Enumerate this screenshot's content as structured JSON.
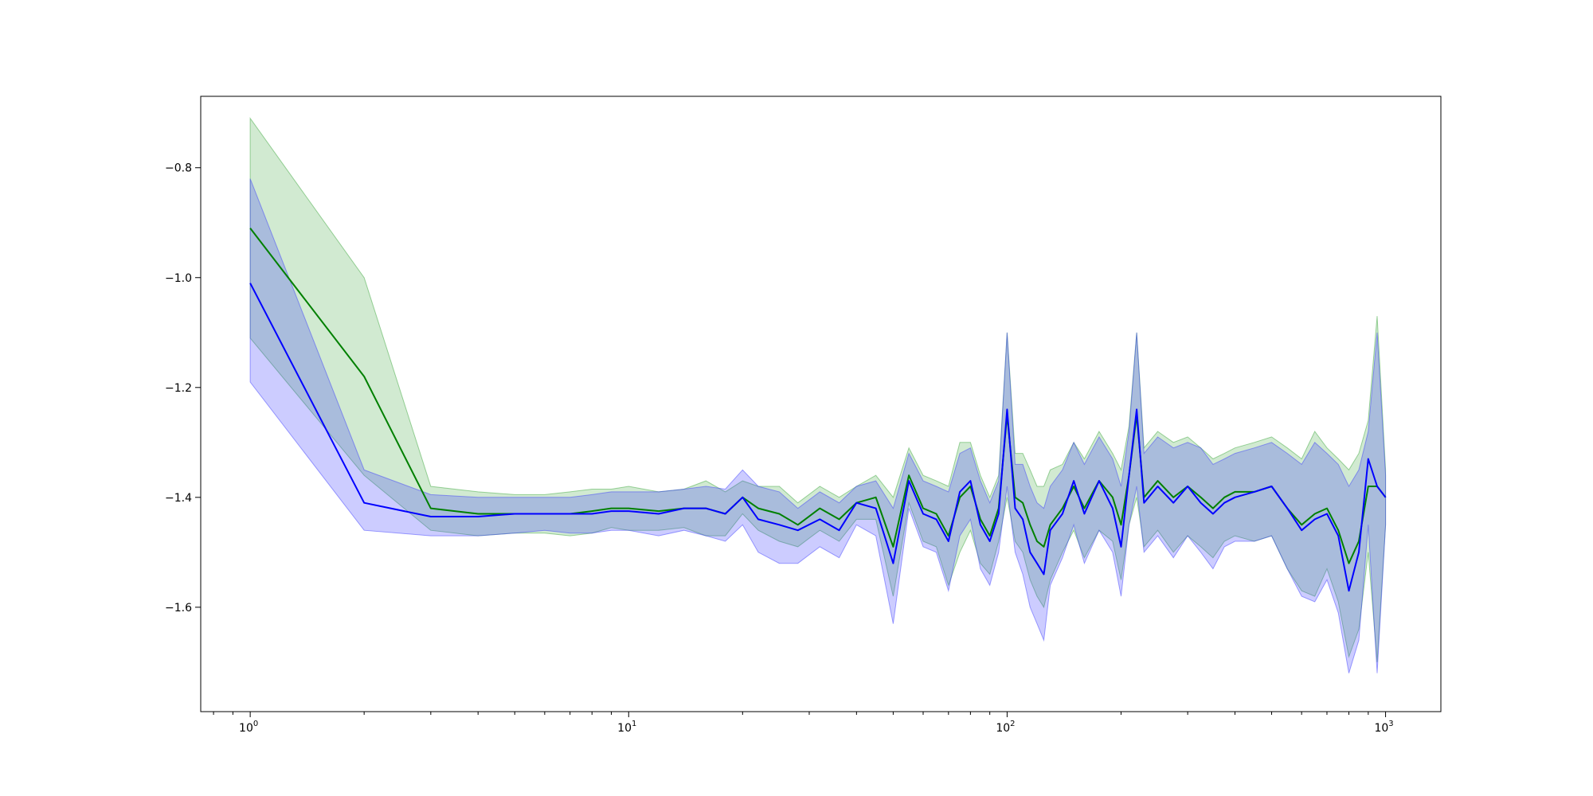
{
  "chart_data": {
    "type": "line",
    "title": "",
    "xlabel": "",
    "ylabel": "",
    "x_scale": "log",
    "xlim": [
      0.74,
      1400
    ],
    "ylim": [
      -1.79,
      -0.67
    ],
    "grid": false,
    "legend": "none",
    "x_ticks": [
      {
        "value": 1,
        "base": "10",
        "exp": "0"
      },
      {
        "value": 10,
        "base": "10",
        "exp": "1"
      },
      {
        "value": 100,
        "base": "10",
        "exp": "2"
      },
      {
        "value": 1000,
        "base": "10",
        "exp": "3"
      }
    ],
    "y_ticks": [
      {
        "value": -0.8,
        "label": "−0.8"
      },
      {
        "value": -1.0,
        "label": "−1.0"
      },
      {
        "value": -1.2,
        "label": "−1.2"
      },
      {
        "value": -1.4,
        "label": "−1.4"
      },
      {
        "value": -1.6,
        "label": "−1.6"
      }
    ],
    "series": [
      {
        "color": "#008000",
        "band_color": "#2ca02c",
        "band_opacity": 0.22,
        "x": [
          1,
          2,
          3,
          4,
          5,
          6,
          7,
          8,
          9,
          10,
          12,
          14,
          16,
          18,
          20,
          22,
          25,
          28,
          32,
          36,
          40,
          45,
          50,
          55,
          60,
          65,
          70,
          75,
          80,
          85,
          90,
          95,
          100,
          105,
          110,
          115,
          120,
          125,
          130,
          140,
          150,
          160,
          175,
          190,
          200,
          210,
          220,
          230,
          250,
          275,
          300,
          325,
          350,
          375,
          400,
          450,
          500,
          550,
          600,
          650,
          700,
          750,
          800,
          850,
          900,
          950,
          1000
        ],
        "mean": [
          -0.91,
          -1.18,
          -1.42,
          -1.43,
          -1.43,
          -1.43,
          -1.43,
          -1.425,
          -1.42,
          -1.42,
          -1.425,
          -1.42,
          -1.42,
          -1.43,
          -1.4,
          -1.42,
          -1.43,
          -1.45,
          -1.42,
          -1.44,
          -1.41,
          -1.4,
          -1.49,
          -1.36,
          -1.42,
          -1.43,
          -1.47,
          -1.4,
          -1.38,
          -1.44,
          -1.47,
          -1.42,
          -1.25,
          -1.4,
          -1.41,
          -1.45,
          -1.48,
          -1.49,
          -1.45,
          -1.42,
          -1.38,
          -1.42,
          -1.37,
          -1.4,
          -1.45,
          -1.36,
          -1.25,
          -1.4,
          -1.37,
          -1.4,
          -1.38,
          -1.4,
          -1.42,
          -1.4,
          -1.39,
          -1.39,
          -1.38,
          -1.42,
          -1.45,
          -1.43,
          -1.42,
          -1.46,
          -1.52,
          -1.48,
          -1.38,
          -1.38,
          -1.4
        ],
        "upper": [
          -0.71,
          -1.0,
          -1.38,
          -1.39,
          -1.395,
          -1.395,
          -1.39,
          -1.385,
          -1.385,
          -1.38,
          -1.39,
          -1.385,
          -1.37,
          -1.39,
          -1.37,
          -1.38,
          -1.38,
          -1.41,
          -1.38,
          -1.4,
          -1.38,
          -1.36,
          -1.4,
          -1.31,
          -1.36,
          -1.37,
          -1.38,
          -1.3,
          -1.3,
          -1.36,
          -1.4,
          -1.36,
          -1.1,
          -1.32,
          -1.32,
          -1.35,
          -1.38,
          -1.38,
          -1.35,
          -1.34,
          -1.3,
          -1.33,
          -1.28,
          -1.32,
          -1.35,
          -1.27,
          -1.1,
          -1.31,
          -1.28,
          -1.3,
          -1.29,
          -1.31,
          -1.33,
          -1.32,
          -1.31,
          -1.3,
          -1.29,
          -1.31,
          -1.33,
          -1.28,
          -1.31,
          -1.33,
          -1.35,
          -1.32,
          -1.26,
          -1.07,
          -1.35
        ],
        "lower": [
          -1.11,
          -1.36,
          -1.46,
          -1.47,
          -1.465,
          -1.465,
          -1.47,
          -1.465,
          -1.455,
          -1.46,
          -1.46,
          -1.455,
          -1.47,
          -1.47,
          -1.43,
          -1.46,
          -1.48,
          -1.49,
          -1.46,
          -1.48,
          -1.44,
          -1.44,
          -1.58,
          -1.41,
          -1.48,
          -1.49,
          -1.56,
          -1.5,
          -1.46,
          -1.52,
          -1.54,
          -1.48,
          -1.4,
          -1.48,
          -1.5,
          -1.55,
          -1.58,
          -1.6,
          -1.55,
          -1.5,
          -1.46,
          -1.51,
          -1.46,
          -1.48,
          -1.55,
          -1.45,
          -1.4,
          -1.49,
          -1.46,
          -1.5,
          -1.47,
          -1.49,
          -1.51,
          -1.48,
          -1.47,
          -1.48,
          -1.47,
          -1.53,
          -1.57,
          -1.58,
          -1.53,
          -1.59,
          -1.69,
          -1.64,
          -1.5,
          -1.7,
          -1.45
        ]
      },
      {
        "color": "#0000ff",
        "band_color": "#3333ff",
        "band_opacity": 0.25,
        "x": [
          1,
          2,
          3,
          4,
          5,
          6,
          7,
          8,
          9,
          10,
          12,
          14,
          16,
          18,
          20,
          22,
          25,
          28,
          32,
          36,
          40,
          45,
          50,
          55,
          60,
          65,
          70,
          75,
          80,
          85,
          90,
          95,
          100,
          105,
          110,
          115,
          120,
          125,
          130,
          140,
          150,
          160,
          175,
          190,
          200,
          210,
          220,
          230,
          250,
          275,
          300,
          325,
          350,
          375,
          400,
          450,
          500,
          550,
          600,
          650,
          700,
          750,
          800,
          850,
          900,
          950,
          1000
        ],
        "mean": [
          -1.01,
          -1.41,
          -1.435,
          -1.435,
          -1.43,
          -1.43,
          -1.43,
          -1.43,
          -1.425,
          -1.425,
          -1.43,
          -1.42,
          -1.42,
          -1.43,
          -1.4,
          -1.44,
          -1.45,
          -1.46,
          -1.44,
          -1.46,
          -1.41,
          -1.42,
          -1.52,
          -1.37,
          -1.43,
          -1.44,
          -1.48,
          -1.39,
          -1.37,
          -1.45,
          -1.48,
          -1.43,
          -1.24,
          -1.42,
          -1.44,
          -1.5,
          -1.52,
          -1.54,
          -1.46,
          -1.43,
          -1.37,
          -1.43,
          -1.37,
          -1.42,
          -1.49,
          -1.36,
          -1.24,
          -1.41,
          -1.38,
          -1.41,
          -1.38,
          -1.41,
          -1.43,
          -1.41,
          -1.4,
          -1.39,
          -1.38,
          -1.42,
          -1.46,
          -1.44,
          -1.43,
          -1.47,
          -1.57,
          -1.5,
          -1.33,
          -1.38,
          -1.4
        ],
        "upper": [
          -0.82,
          -1.35,
          -1.395,
          -1.4,
          -1.4,
          -1.4,
          -1.4,
          -1.395,
          -1.39,
          -1.39,
          -1.39,
          -1.385,
          -1.38,
          -1.385,
          -1.35,
          -1.38,
          -1.39,
          -1.42,
          -1.39,
          -1.41,
          -1.38,
          -1.37,
          -1.42,
          -1.32,
          -1.37,
          -1.38,
          -1.39,
          -1.32,
          -1.31,
          -1.37,
          -1.41,
          -1.37,
          -1.1,
          -1.34,
          -1.34,
          -1.38,
          -1.41,
          -1.42,
          -1.38,
          -1.35,
          -1.3,
          -1.34,
          -1.29,
          -1.33,
          -1.38,
          -1.28,
          -1.1,
          -1.32,
          -1.29,
          -1.31,
          -1.3,
          -1.31,
          -1.34,
          -1.33,
          -1.32,
          -1.31,
          -1.3,
          -1.32,
          -1.34,
          -1.3,
          -1.32,
          -1.34,
          -1.38,
          -1.35,
          -1.28,
          -1.1,
          -1.36
        ],
        "lower": [
          -1.19,
          -1.46,
          -1.47,
          -1.47,
          -1.465,
          -1.46,
          -1.465,
          -1.465,
          -1.46,
          -1.46,
          -1.47,
          -1.46,
          -1.47,
          -1.48,
          -1.45,
          -1.5,
          -1.52,
          -1.52,
          -1.49,
          -1.51,
          -1.45,
          -1.47,
          -1.63,
          -1.42,
          -1.49,
          -1.5,
          -1.57,
          -1.47,
          -1.44,
          -1.53,
          -1.56,
          -1.5,
          -1.38,
          -1.5,
          -1.54,
          -1.6,
          -1.63,
          -1.66,
          -1.56,
          -1.51,
          -1.45,
          -1.52,
          -1.46,
          -1.5,
          -1.58,
          -1.45,
          -1.38,
          -1.5,
          -1.47,
          -1.51,
          -1.47,
          -1.5,
          -1.53,
          -1.49,
          -1.48,
          -1.48,
          -1.47,
          -1.53,
          -1.58,
          -1.59,
          -1.55,
          -1.61,
          -1.72,
          -1.66,
          -1.45,
          -1.72,
          -1.45
        ]
      }
    ]
  }
}
